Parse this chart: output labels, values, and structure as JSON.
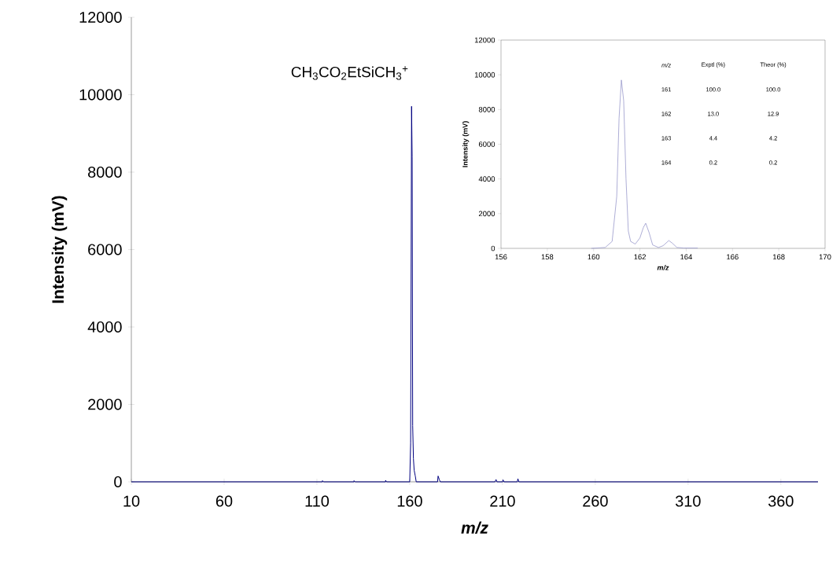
{
  "chart_data": [
    {
      "type": "line",
      "xlabel": "*m/z*",
      "ylabel": "Intensity (mV)",
      "xlim": [
        10,
        380
      ],
      "ylim": [
        0,
        12000
      ],
      "xticks": [
        10,
        60,
        110,
        160,
        210,
        260,
        310,
        360
      ],
      "yticks": [
        0,
        2000,
        4000,
        6000,
        8000,
        10000,
        12000
      ],
      "annotations": [
        "CH$_{3}$CO$_{2}$EtSiCH$_{3}$$^{+}$"
      ],
      "series": [
        {
          "color": "#000080",
          "x": [
            10,
            113,
            113,
            113.5,
            130,
            130,
            130.5,
            147,
            147,
            147.5,
            160,
            160.5,
            161,
            161.3,
            161.6,
            162,
            162.4,
            163,
            163.5,
            175,
            175.3,
            176,
            176.5,
            206,
            206.5,
            207,
            210,
            210.3,
            210.8,
            218,
            218.3,
            218.8,
            380
          ],
          "values": [
            0,
            0,
            30,
            0,
            0,
            30,
            0,
            0,
            40,
            0,
            0,
            1000,
            9700,
            8400,
            1450,
            600,
            300,
            150,
            0,
            0,
            150,
            50,
            0,
            0,
            60,
            0,
            0,
            50,
            0,
            0,
            80,
            0,
            0
          ]
        }
      ]
    },
    {
      "type": "line",
      "xlabel": "*m/z*",
      "ylabel": "Intensity (mV)",
      "xlim": [
        156,
        170
      ],
      "ylim": [
        0,
        12000
      ],
      "xticks": [
        156,
        158,
        160,
        162,
        164,
        166,
        168,
        170
      ],
      "yticks": [
        0,
        2000,
        4000,
        6000,
        8000,
        10000,
        12000
      ],
      "annotations": [
        "*m/z*",
        "Exptl (%)",
        "Theor  (%)",
        "161",
        "100.0",
        "100.0",
        "162",
        "13.0",
        "12.9",
        "163",
        "4.4",
        "4.2",
        "164",
        "0.2",
        "0.2"
      ],
      "series": [
        {
          "color": "#9999cc",
          "x": [
            159.9,
            160.5,
            160.8,
            161.0,
            161.1,
            161.2,
            161.3,
            161.4,
            161.5,
            161.6,
            161.8,
            162.0,
            162.15,
            162.25,
            162.4,
            162.55,
            162.8,
            163.0,
            163.25,
            163.4,
            163.6,
            163.9,
            164.5
          ],
          "values": [
            0,
            50,
            400,
            3000,
            7500,
            9700,
            8500,
            4000,
            1000,
            400,
            250,
            600,
            1200,
            1450,
            900,
            200,
            50,
            150,
            450,
            300,
            50,
            20,
            20
          ]
        }
      ]
    }
  ]
}
